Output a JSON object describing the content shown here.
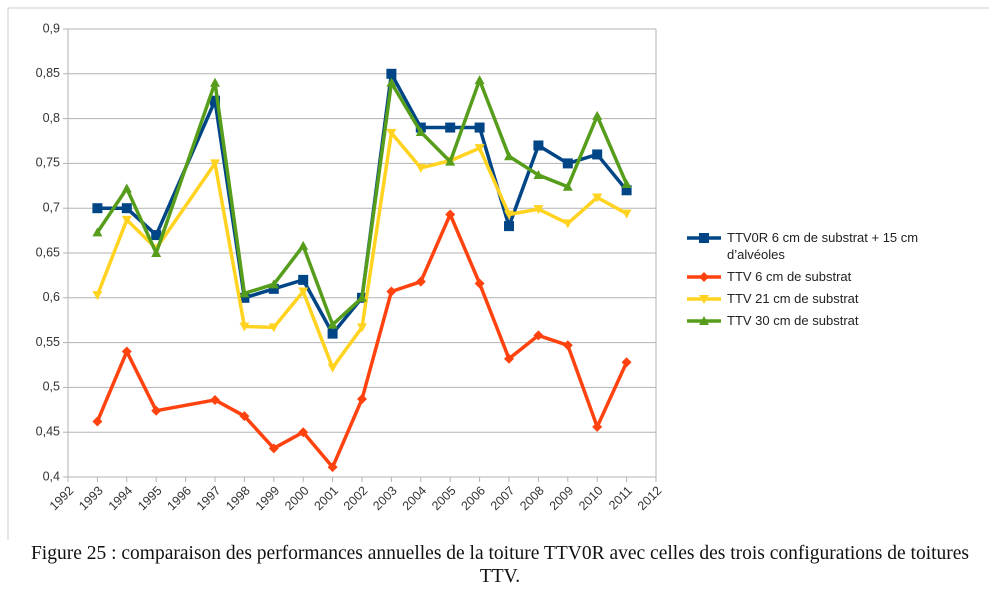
{
  "chart_data": {
    "type": "line",
    "x": [
      1993,
      1994,
      1995,
      1997,
      1998,
      1999,
      2000,
      2001,
      2002,
      2003,
      2004,
      2005,
      2006,
      2007,
      2008,
      2009,
      2010,
      2011
    ],
    "series": [
      {
        "name": "TTV0R 6 cm de substrat + 15 cm d’alvéoles",
        "color": "#004586",
        "marker": "square",
        "values": [
          0.7,
          0.7,
          0.67,
          0.82,
          0.6,
          0.61,
          0.62,
          0.56,
          0.6,
          0.85,
          0.79,
          0.79,
          0.79,
          0.68,
          0.77,
          0.75,
          0.76,
          0.72
        ]
      },
      {
        "name": "TTV 6 cm de substrat",
        "color": "#ff420e",
        "marker": "diamond",
        "values": [
          0.462,
          0.54,
          0.474,
          0.486,
          0.468,
          0.432,
          0.45,
          0.411,
          0.487,
          0.607,
          0.618,
          0.693,
          0.616,
          0.532,
          0.558,
          0.547,
          0.456,
          0.528
        ]
      },
      {
        "name": "TTV 21 cm de substrat",
        "color": "#ffd320",
        "marker": "triangle-down",
        "values": [
          0.603,
          0.687,
          0.655,
          0.75,
          0.568,
          0.567,
          0.607,
          0.522,
          0.567,
          0.784,
          0.745,
          0.753,
          0.767,
          0.693,
          0.699,
          0.683,
          0.712,
          0.694
        ]
      },
      {
        "name": "TTV 30 cm de substrat",
        "color": "#579d1c",
        "marker": "triangle-up",
        "values": [
          0.673,
          0.722,
          0.65,
          0.84,
          0.605,
          0.615,
          0.658,
          0.57,
          0.6,
          0.84,
          0.785,
          0.752,
          0.843,
          0.758,
          0.737,
          0.724,
          0.803,
          0.727
        ]
      }
    ],
    "xlim": [
      1992,
      2012
    ],
    "xticks": [
      1992,
      1993,
      1994,
      1995,
      1996,
      1997,
      1998,
      1999,
      2000,
      2001,
      2002,
      2003,
      2004,
      2005,
      2006,
      2007,
      2008,
      2009,
      2010,
      2011,
      2012
    ],
    "ylim": [
      0.4,
      0.9
    ],
    "yticks": [
      {
        "value": 0.4,
        "label": "0,4"
      },
      {
        "value": 0.45,
        "label": "0,45"
      },
      {
        "value": 0.5,
        "label": "0,5"
      },
      {
        "value": 0.55,
        "label": "0,55"
      },
      {
        "value": 0.6,
        "label": "0,6"
      },
      {
        "value": 0.65,
        "label": "0,65"
      },
      {
        "value": 0.7,
        "label": "0,7"
      },
      {
        "value": 0.75,
        "label": "0,75"
      },
      {
        "value": 0.8,
        "label": "0,8"
      },
      {
        "value": 0.85,
        "label": "0,85"
      },
      {
        "value": 0.9,
        "label": "0,9"
      }
    ],
    "grid": true,
    "legend": "right",
    "caption": "Figure 25 : comparaison des performances annuelles de la toiture TTV0R avec celles des trois configurations de toitures TTV."
  }
}
